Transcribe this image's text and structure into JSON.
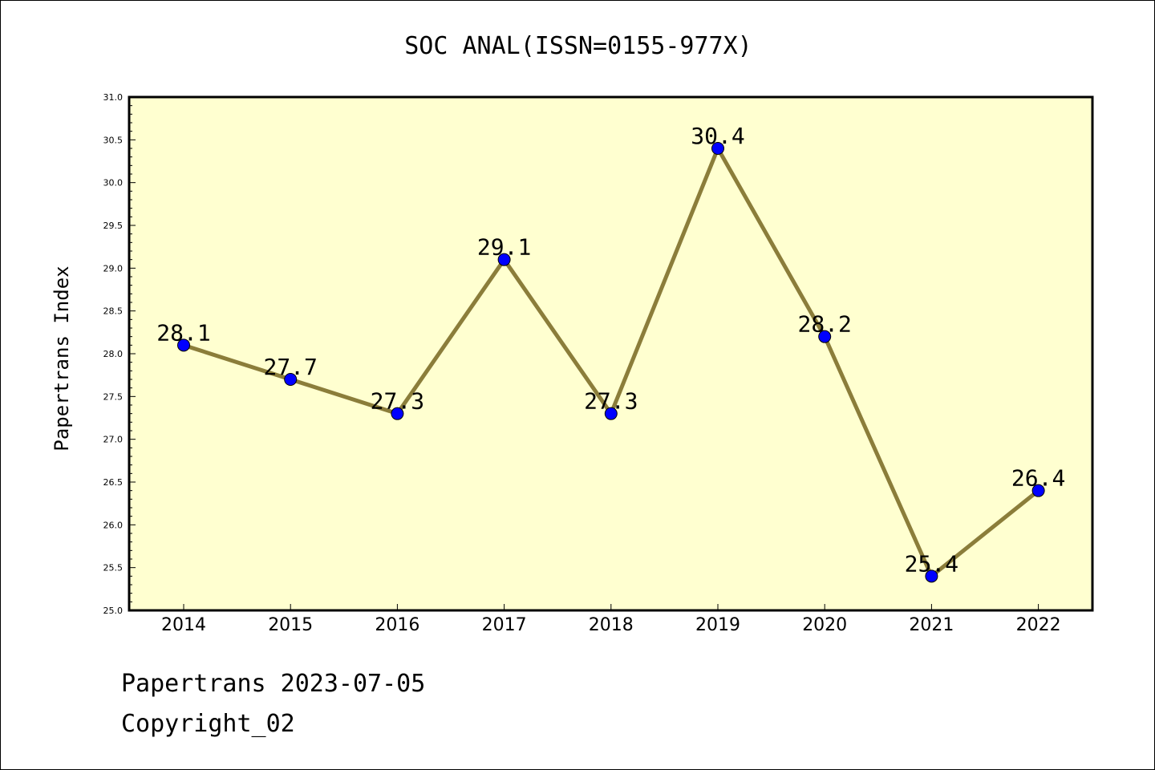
{
  "chart_data": {
    "type": "line",
    "title": "SOC ANAL(ISSN=0155-977X)",
    "ylabel": "Papertrans Index",
    "xlabel": "",
    "categories": [
      "2014",
      "2015",
      "2016",
      "2017",
      "2018",
      "2019",
      "2020",
      "2021",
      "2022"
    ],
    "values": [
      28.1,
      27.7,
      27.3,
      29.1,
      27.3,
      30.4,
      28.2,
      25.4,
      26.4
    ],
    "data_labels": [
      "28.1",
      "27.7",
      "27.3",
      "29.1",
      "27.3",
      "30.4",
      "28.2",
      "25.4",
      "26.4"
    ],
    "ylim": [
      25.0,
      31.0
    ],
    "yticks": [
      "25.0",
      "25.5",
      "26.0",
      "26.5",
      "27.0",
      "27.5",
      "28.0",
      "28.5",
      "29.0",
      "29.5",
      "30.0",
      "30.5",
      "31.0"
    ],
    "grid": false,
    "colors": {
      "plot_background": "#ffffd0",
      "line": "#8b7d3a",
      "marker": "#0000ff"
    }
  },
  "footer": {
    "line1": "Papertrans 2023-07-05",
    "line2": "Copyright_02"
  }
}
